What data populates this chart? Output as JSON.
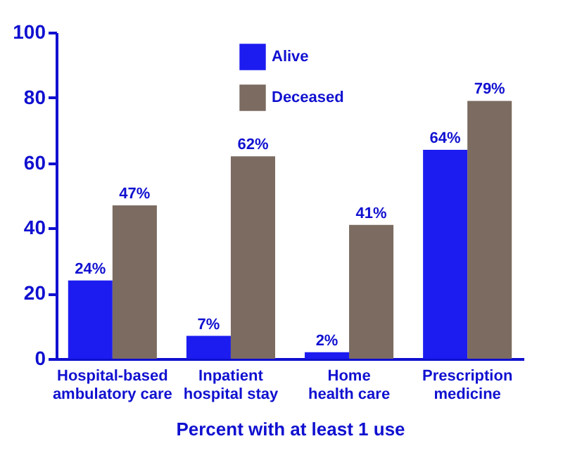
{
  "chart_data": {
    "type": "bar",
    "xlabel": "Percent with at least 1 use",
    "categories": [
      "Hospital-based ambulatory care",
      "Inpatient hospital stay",
      "Home health care",
      "Prescription medicine"
    ],
    "series": [
      {
        "name": "Alive",
        "color": "#1c1cf0",
        "values": [
          24,
          7,
          2,
          64
        ],
        "value_labels": [
          "24%",
          "7%",
          "2%",
          "64%"
        ]
      },
      {
        "name": "Deceased",
        "color": "#7b6b60",
        "values": [
          47,
          62,
          41,
          79
        ],
        "value_labels": [
          "47%",
          "62%",
          "41%",
          "79%"
        ]
      }
    ],
    "ylim": [
      0,
      100
    ],
    "yticks": [
      0,
      20,
      40,
      60,
      80,
      100
    ],
    "grid": false,
    "legend": "top"
  }
}
